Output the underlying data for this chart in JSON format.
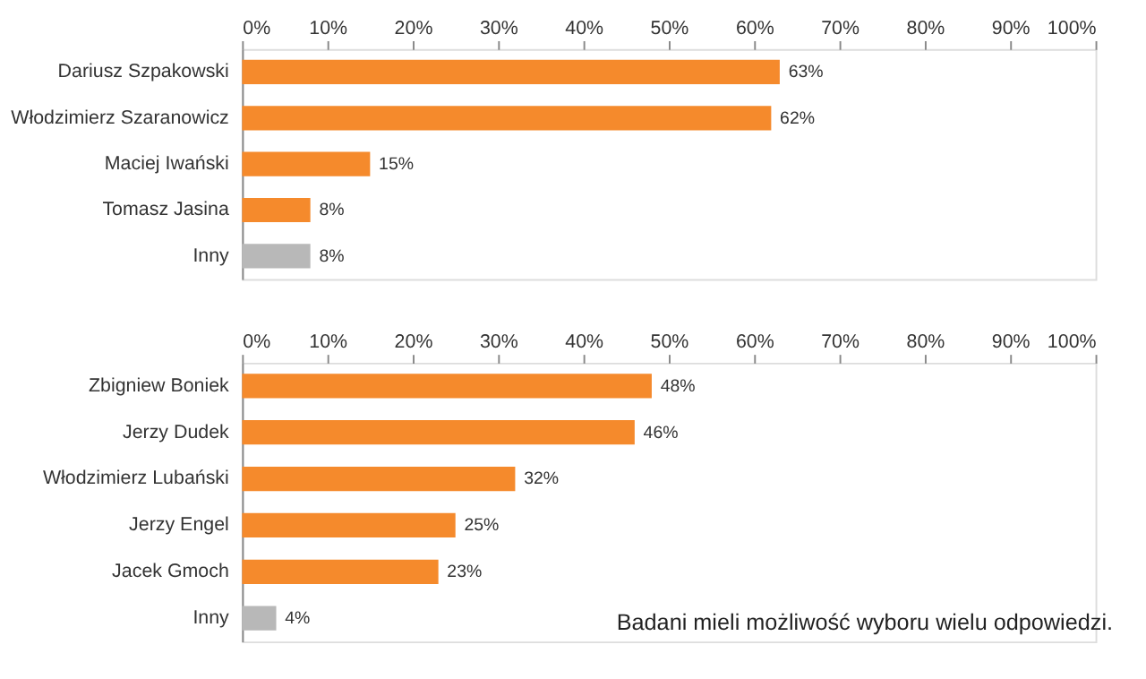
{
  "chart_data": [
    {
      "type": "bar",
      "orientation": "horizontal",
      "categories": [
        "Dariusz Szpakowski",
        "Włodzimierz Szaranowicz",
        "Maciej Iwański",
        "Tomasz Jasina",
        "Inny"
      ],
      "values": [
        63,
        62,
        15,
        8,
        8
      ],
      "colors": [
        "#f58a2c",
        "#f58a2c",
        "#f58a2c",
        "#f58a2c",
        "#b8b8b8"
      ],
      "value_labels": [
        "63%",
        "62%",
        "15%",
        "8%",
        "8%"
      ],
      "xlim": [
        0,
        100
      ],
      "xticks": [
        {
          "value": 0,
          "label": "0%"
        },
        {
          "value": 10,
          "label": "10%"
        },
        {
          "value": 20,
          "label": "20%"
        },
        {
          "value": 30,
          "label": "30%"
        },
        {
          "value": 40,
          "label": "40%"
        },
        {
          "value": 50,
          "label": "50%"
        },
        {
          "value": 60,
          "label": "60%"
        },
        {
          "value": 70,
          "label": "70%"
        },
        {
          "value": 80,
          "label": "80%"
        },
        {
          "value": 90,
          "label": "90%"
        },
        {
          "value": 100,
          "label": "100%"
        }
      ],
      "grid": false,
      "legend": false
    },
    {
      "type": "bar",
      "orientation": "horizontal",
      "categories": [
        "Zbigniew Boniek",
        "Jerzy Dudek",
        "Włodzimierz Lubański",
        "Jerzy Engel",
        "Jacek Gmoch",
        "Inny"
      ],
      "values": [
        48,
        46,
        32,
        25,
        23,
        4
      ],
      "colors": [
        "#f58a2c",
        "#f58a2c",
        "#f58a2c",
        "#f58a2c",
        "#f58a2c",
        "#b8b8b8"
      ],
      "value_labels": [
        "48%",
        "46%",
        "32%",
        "25%",
        "23%",
        "4%"
      ],
      "xlim": [
        0,
        100
      ],
      "xticks": [
        {
          "value": 0,
          "label": "0%"
        },
        {
          "value": 10,
          "label": "10%"
        },
        {
          "value": 20,
          "label": "20%"
        },
        {
          "value": 30,
          "label": "30%"
        },
        {
          "value": 40,
          "label": "40%"
        },
        {
          "value": 50,
          "label": "50%"
        },
        {
          "value": 60,
          "label": "60%"
        },
        {
          "value": 70,
          "label": "70%"
        },
        {
          "value": 80,
          "label": "80%"
        },
        {
          "value": 90,
          "label": "90%"
        },
        {
          "value": 100,
          "label": "100%"
        }
      ],
      "grid": false,
      "legend": false,
      "annotations": [
        "Badani mieli możliwość wyboru wielu odpowiedzi."
      ]
    }
  ]
}
